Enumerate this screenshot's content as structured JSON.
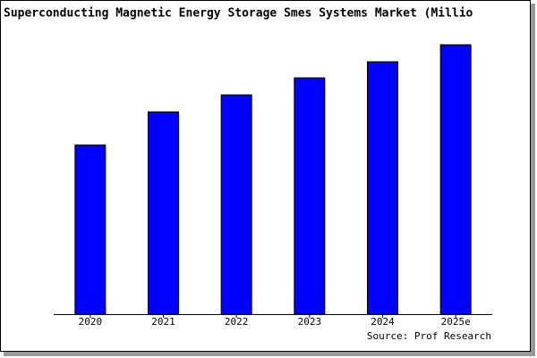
{
  "chart_data": {
    "type": "bar",
    "title": "Superconducting Magnetic Energy Storage Smes Systems Market (Millio",
    "source": "Source: Prof Research",
    "categories": [
      "2020",
      "2021",
      "2022",
      "2023",
      "2024",
      "2025e"
    ],
    "values": [
      189,
      226,
      245,
      264,
      282,
      301
    ],
    "color": "#0000ff",
    "ylim": [
      0,
      303
    ]
  }
}
